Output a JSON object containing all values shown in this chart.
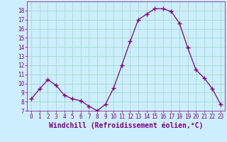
{
  "x": [
    0,
    1,
    2,
    3,
    4,
    5,
    6,
    7,
    8,
    9,
    10,
    11,
    12,
    13,
    14,
    15,
    16,
    17,
    18,
    19,
    20,
    21,
    22,
    23
  ],
  "y": [
    8.3,
    9.4,
    10.4,
    9.8,
    8.7,
    8.3,
    8.1,
    7.5,
    7.0,
    7.7,
    9.5,
    12.0,
    14.6,
    17.0,
    17.6,
    18.2,
    18.2,
    17.9,
    16.6,
    13.9,
    11.5,
    10.6,
    9.4,
    7.7
  ],
  "line_color": "#800080",
  "marker": "D",
  "marker_size": 2.5,
  "bg_color": "#cceeff",
  "grid_color": "#aaddcc",
  "xlabel": "Windchill (Refroidissement éolien,°C)",
  "xlabel_color": "#800080",
  "tick_color": "#800080",
  "ylim": [
    7,
    19
  ],
  "xlim": [
    -0.5,
    23.5
  ],
  "yticks": [
    7,
    8,
    9,
    10,
    11,
    12,
    13,
    14,
    15,
    16,
    17,
    18
  ],
  "xticks": [
    0,
    1,
    2,
    3,
    4,
    5,
    6,
    7,
    8,
    9,
    10,
    11,
    12,
    13,
    14,
    15,
    16,
    17,
    18,
    19,
    20,
    21,
    22,
    23
  ],
  "tick_fontsize": 5.5,
  "xlabel_fontsize": 7
}
